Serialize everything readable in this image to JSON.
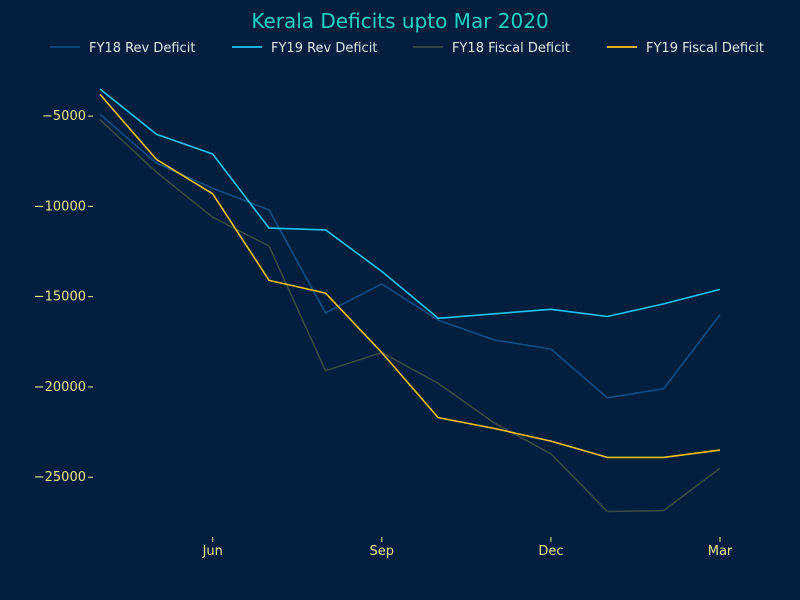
{
  "chart_data": {
    "type": "line",
    "title": "Kerala Deficits upto Mar 2020",
    "xlabel": "",
    "ylabel": "",
    "x": [
      1,
      2,
      3,
      4,
      5,
      6,
      7,
      8,
      9,
      10,
      11,
      12
    ],
    "x_ticks": [
      {
        "x": 3,
        "label": "Jun"
      },
      {
        "x": 6,
        "label": "Sep"
      },
      {
        "x": 9,
        "label": "Dec"
      },
      {
        "x": 12,
        "label": "Mar"
      }
    ],
    "y_ticks": [
      -5000,
      -10000,
      -15000,
      -20000,
      -25000
    ],
    "xlim": [
      1,
      12
    ],
    "ylim": [
      -28200,
      -3000
    ],
    "grid": false,
    "legend_position": "top",
    "series": [
      {
        "name": "FY18 Rev Deficit",
        "color": "#0b4f85",
        "values": [
          -4900,
          -7600,
          -9000,
          -10200,
          -15900,
          -14300,
          -16300,
          -17400,
          -17900,
          -20600,
          -20100,
          -16000
        ]
      },
      {
        "name": "FY19 Rev Deficit",
        "color": "#18c7f5",
        "values": [
          -3500,
          -6000,
          -7100,
          -11200,
          -11300,
          -13600,
          -16200,
          -15950,
          -15700,
          -16100,
          -15400,
          -14600
        ]
      },
      {
        "name": "FY18 Fiscal Deficit",
        "color": "#3b4a43",
        "values": [
          -5200,
          -8100,
          -10600,
          -12200,
          -19100,
          -18100,
          -19800,
          -22000,
          -23700,
          -26900,
          -26850,
          -24500
        ]
      },
      {
        "name": "FY19 Fiscal Deficit",
        "color": "#ffc20e",
        "values": [
          -3800,
          -7400,
          -9300,
          -14100,
          -14800,
          -18100,
          -21700,
          -22300,
          -23000,
          -23900,
          -23900,
          -23500
        ]
      }
    ]
  }
}
